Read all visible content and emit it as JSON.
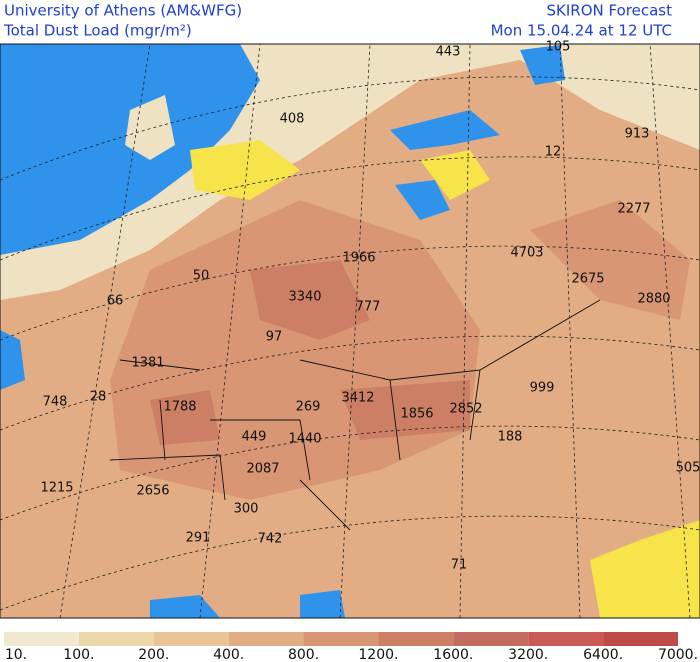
{
  "header": {
    "institution": "University of Athens (AM&WFG)",
    "variable": "Total Dust Load (mgr/m²)",
    "product": "SKIRON Forecast",
    "valid_time": "Mon 15.04.24 at 12 UTC"
  },
  "map": {
    "labels": [
      "443",
      "105",
      "408",
      "913",
      "12",
      "2277",
      "1966",
      "4703",
      "50",
      "66",
      "3340",
      "777",
      "2675",
      "2880",
      "97",
      "1381",
      "748",
      "28",
      "1788",
      "269",
      "3412",
      "1856",
      "2852",
      "999",
      "449",
      "1440",
      "188",
      "2087",
      "1215",
      "2656",
      "300",
      "505",
      "291",
      "742",
      "71"
    ]
  },
  "colorbar": {
    "labels": [
      "10.",
      "100.",
      "200.",
      "400.",
      "800.",
      "1200.",
      "1600.",
      "3200.",
      "6400.",
      "7000."
    ],
    "colors": [
      "#f1e8d2",
      "#ecd7aa",
      "#e9c496",
      "#e2ad84",
      "#d89674",
      "#cd7f66",
      "#c46c60",
      "#c95a55",
      "#c04a48"
    ]
  }
}
